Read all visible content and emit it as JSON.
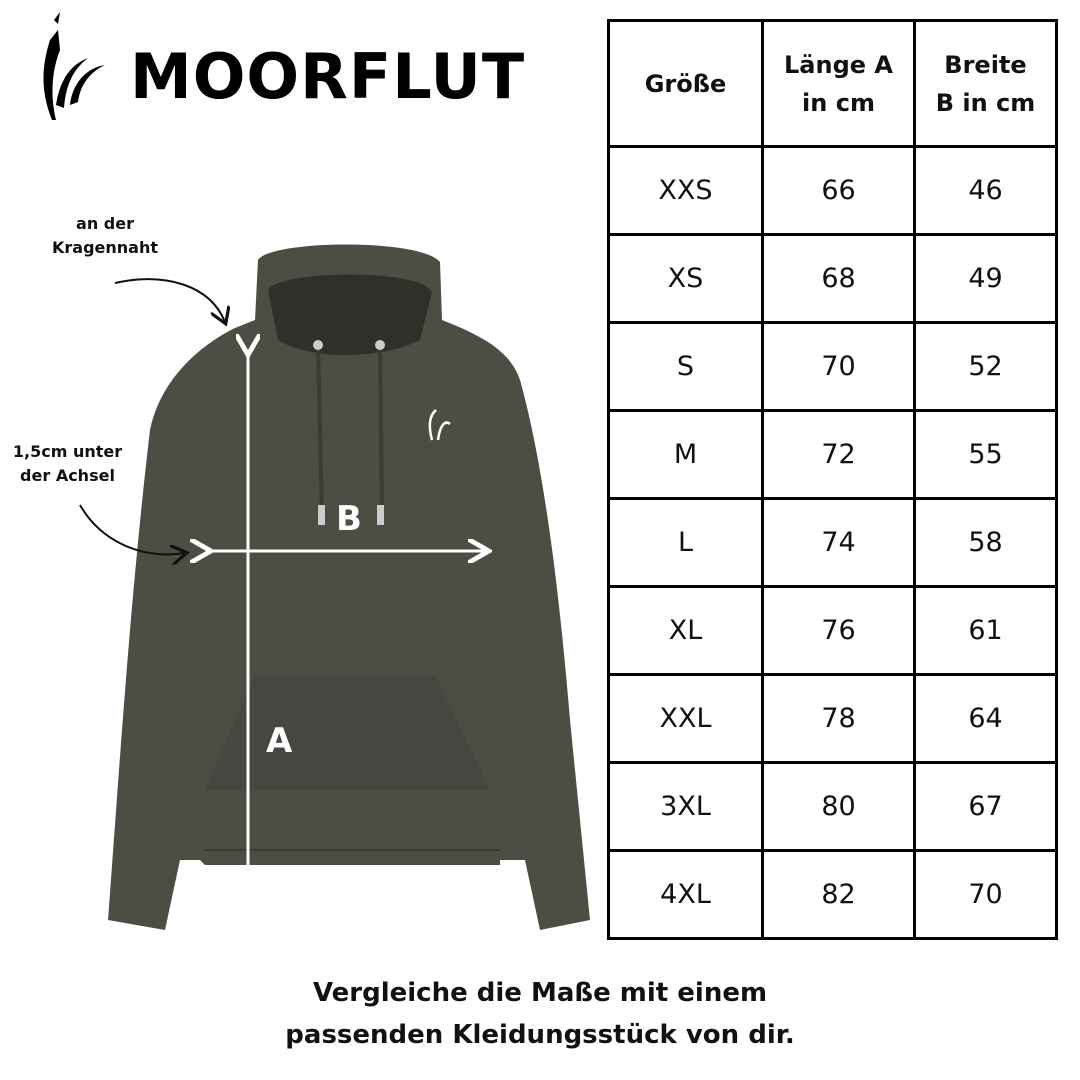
{
  "brand": {
    "name": "MOORFLUT",
    "logo_icon": "cattail-reed-icon"
  },
  "annotations": {
    "collar": "an der\nKragennaht",
    "collar_lines": [
      "an der",
      "Kragennaht"
    ],
    "armpit_lines": [
      "1,5cm unter",
      "der Achsel"
    ],
    "label_a": "A",
    "label_b": "B"
  },
  "colors": {
    "hoodie": "#4b4e43",
    "arrow": "#ffffff",
    "border": "#000000"
  },
  "table": {
    "headers": [
      [
        "Größe"
      ],
      [
        "Länge A",
        "in cm"
      ],
      [
        "Breite",
        "B in cm"
      ]
    ],
    "rows": [
      [
        "XXS",
        "66",
        "46"
      ],
      [
        "XS",
        "68",
        "49"
      ],
      [
        "S",
        "70",
        "52"
      ],
      [
        "M",
        "72",
        "55"
      ],
      [
        "L",
        "74",
        "58"
      ],
      [
        "XL",
        "76",
        "61"
      ],
      [
        "XXL",
        "78",
        "64"
      ],
      [
        "3XL",
        "80",
        "67"
      ],
      [
        "4XL",
        "82",
        "70"
      ]
    ]
  },
  "footer": {
    "lines": [
      "Vergleiche die Maße mit einem",
      "passenden Kleidungsstück von dir."
    ]
  }
}
